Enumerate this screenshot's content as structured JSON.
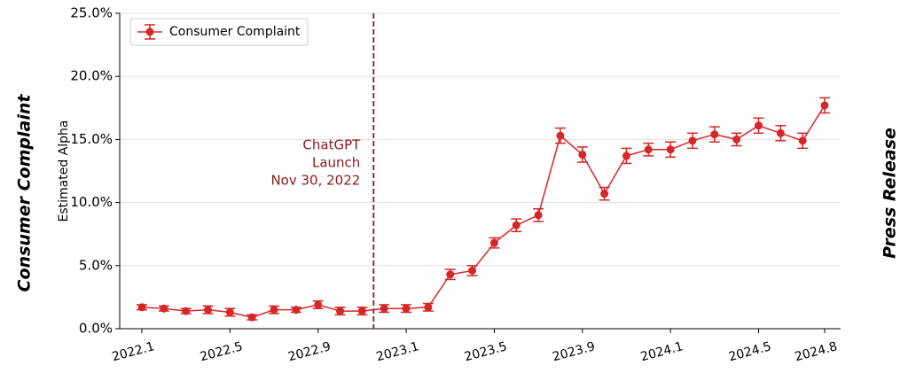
{
  "chart_data": {
    "type": "line",
    "y_label": "Estimated Alpha",
    "side_labels": [
      "Consumer Complaint",
      "Press Release"
    ],
    "annotation": [
      "ChatGPT",
      "Launch",
      "Nov 30, 2022"
    ],
    "categories": [
      "2022.1",
      null,
      null,
      null,
      "2022.5",
      null,
      null,
      null,
      "2022.9",
      null,
      null,
      null,
      "2023.1",
      null,
      null,
      null,
      "2023.5",
      null,
      null,
      null,
      "2023.9",
      null,
      null,
      null,
      "2024.1",
      null,
      null,
      null,
      "2024.5",
      null,
      null,
      "2024.8"
    ],
    "series": [
      {
        "name": "Consumer Complaint",
        "color": "#d62728",
        "values": [
          1.7,
          1.6,
          1.4,
          1.5,
          1.3,
          0.9,
          1.5,
          1.5,
          1.9,
          1.4,
          1.4,
          1.6,
          1.6,
          1.7,
          4.3,
          4.6,
          6.8,
          8.2,
          9.0,
          15.3,
          13.8,
          10.7,
          13.7,
          14.2,
          14.2,
          14.9,
          15.4,
          15.0,
          16.1,
          15.5,
          14.9,
          17.7
        ],
        "errors": [
          0.2,
          0.2,
          0.2,
          0.3,
          0.3,
          0.2,
          0.3,
          0.2,
          0.3,
          0.3,
          0.3,
          0.3,
          0.3,
          0.3,
          0.4,
          0.4,
          0.4,
          0.5,
          0.5,
          0.6,
          0.6,
          0.5,
          0.6,
          0.5,
          0.6,
          0.6,
          0.6,
          0.5,
          0.6,
          0.6,
          0.6,
          0.6
        ]
      }
    ],
    "ylim": [
      0,
      25
    ],
    "yticks": [
      {
        "value": 0,
        "label": "0.0%"
      },
      {
        "value": 5,
        "label": "5.0%"
      },
      {
        "value": 10,
        "label": "10.0%"
      },
      {
        "value": 15,
        "label": "15.0%"
      },
      {
        "value": 20,
        "label": "20.0%"
      },
      {
        "value": 25,
        "label": "25.0%"
      }
    ],
    "grid": true,
    "legend": "upper left"
  }
}
